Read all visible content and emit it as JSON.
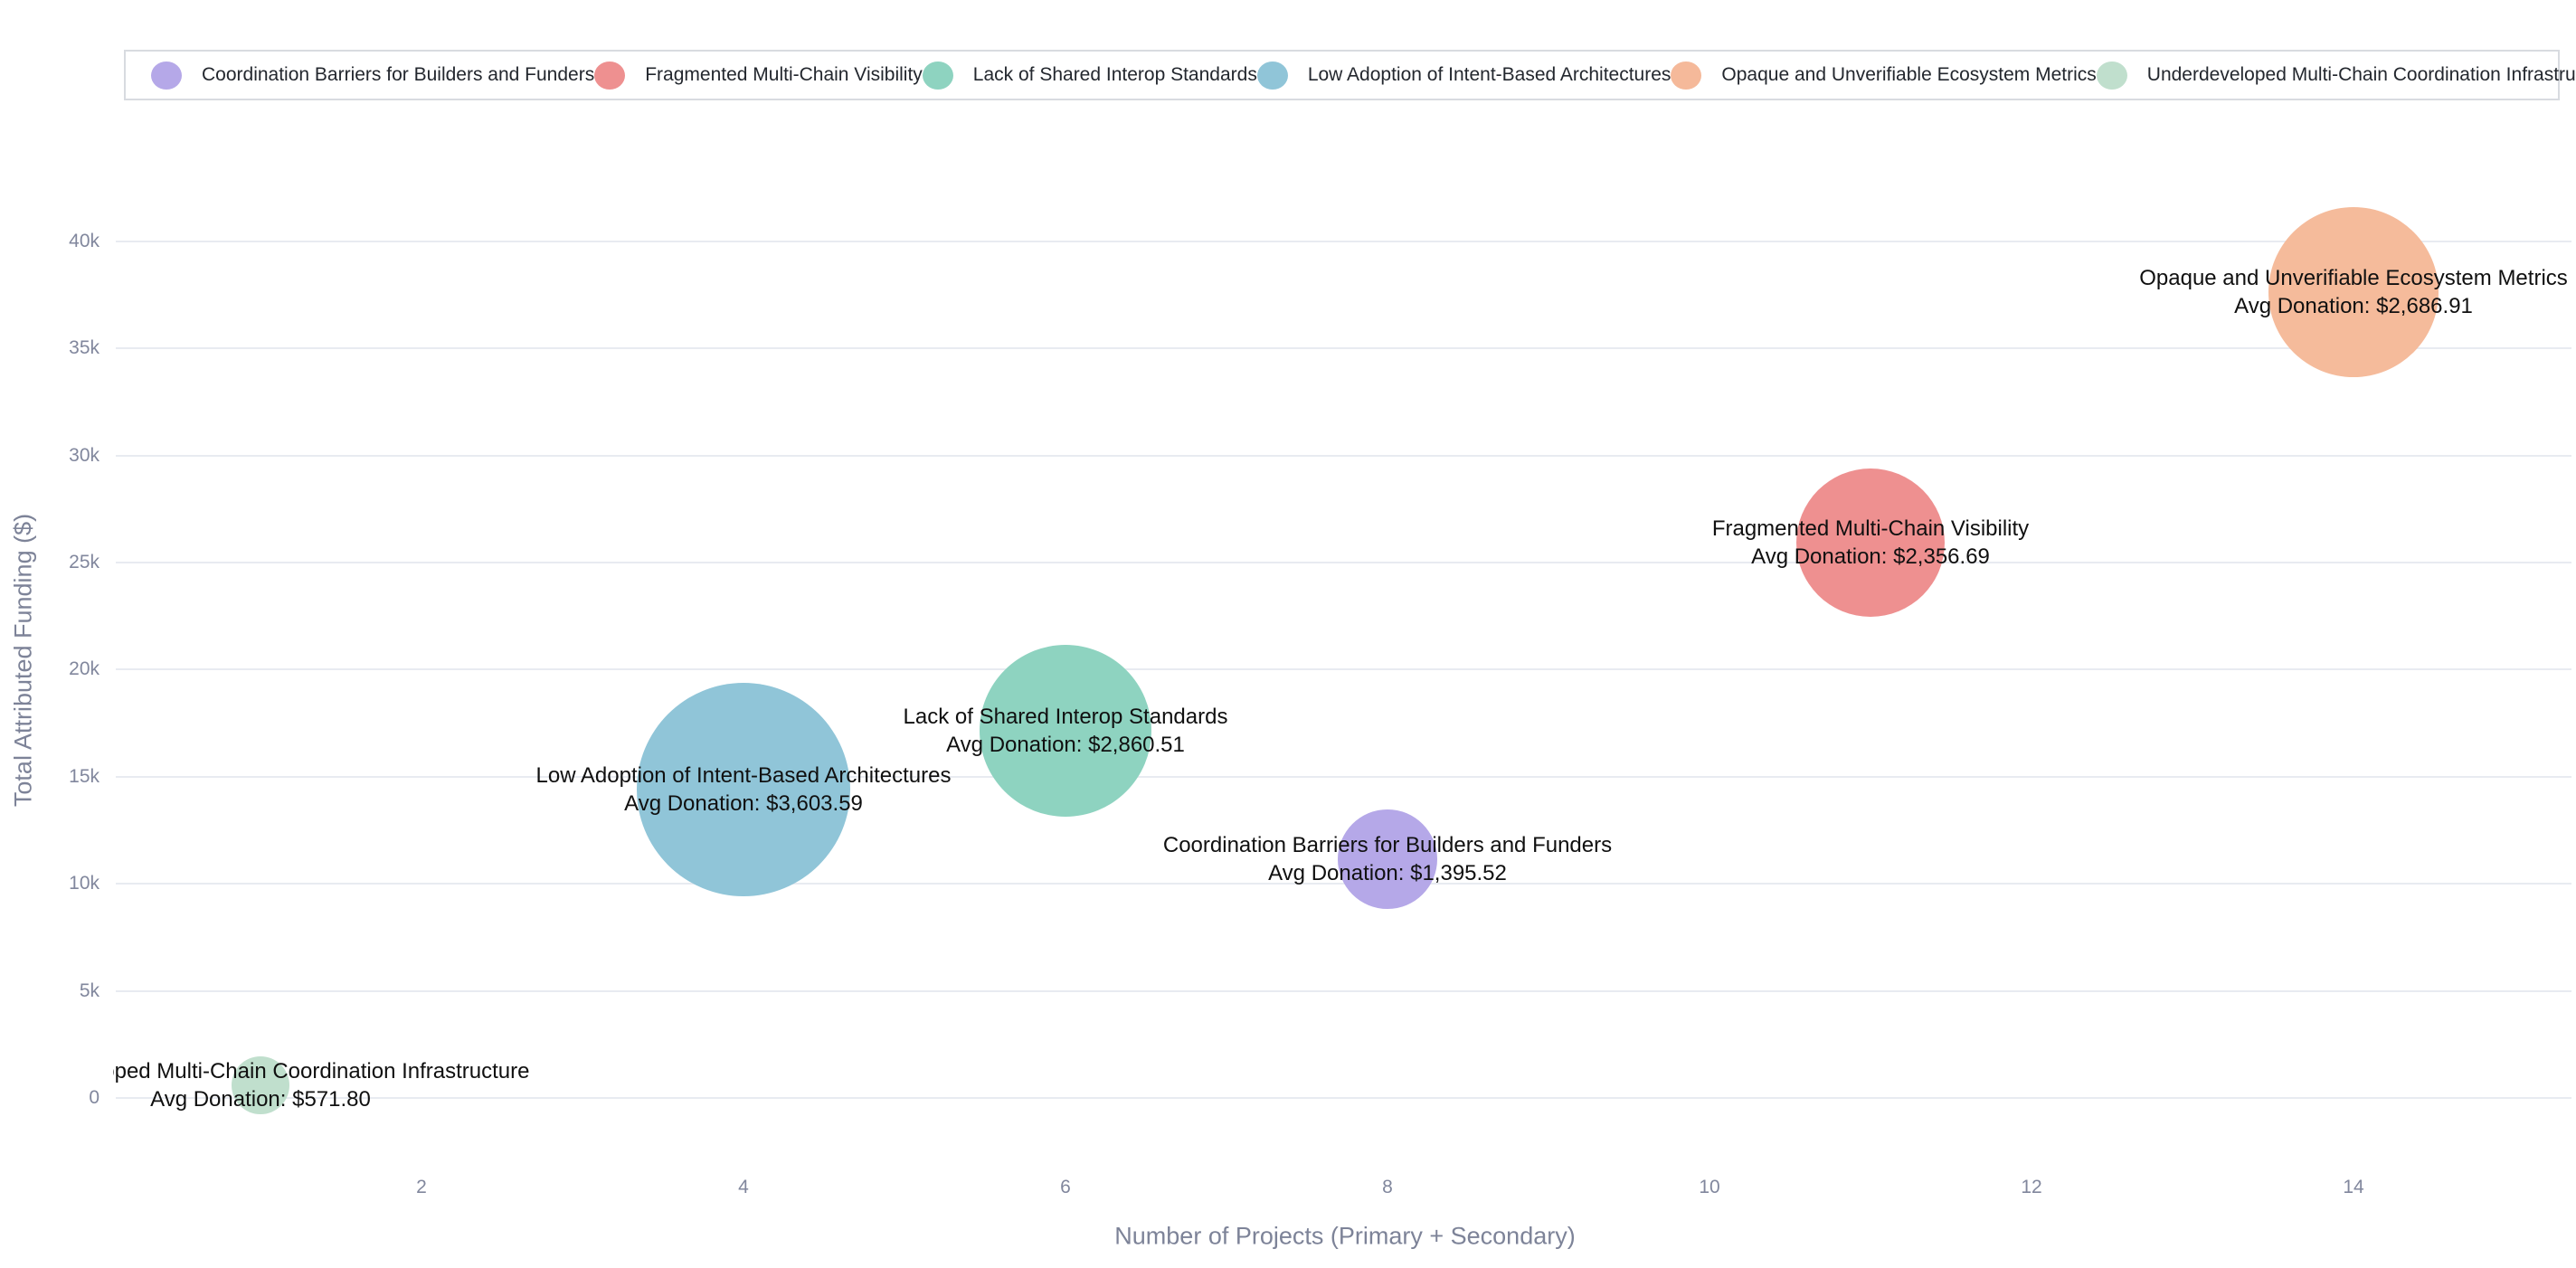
{
  "legend": {
    "items": [
      {
        "label": "Coordination Barriers for Builders and Funders",
        "color": "#b5a8e8"
      },
      {
        "label": "Fragmented Multi-Chain Visibility",
        "color": "#ee9090"
      },
      {
        "label": "Lack of Shared Interop Standards",
        "color": "#8ed3c0"
      },
      {
        "label": "Low Adoption of Intent-Based Architectures",
        "color": "#90c5d8"
      },
      {
        "label": "Opaque and Unverifiable Ecosystem Metrics",
        "color": "#f5b99a"
      },
      {
        "label": "Underdeveloped Multi-Chain Coordination Infrastructure",
        "color": "#c0dfcd"
      }
    ]
  },
  "chart_data": {
    "type": "scatter",
    "subtype": "bubble",
    "title": "",
    "xlabel": "Number of Projects (Primary + Secondary)",
    "ylabel": "Total Attributed Funding ($)",
    "xlim": [
      0.1,
      15.35
    ],
    "ylim": [
      -2250,
      42750
    ],
    "grid": "horizontal",
    "legend_position": "top",
    "x_ticks": [
      {
        "v": 2,
        "label": "2"
      },
      {
        "v": 4,
        "label": "4"
      },
      {
        "v": 6,
        "label": "6"
      },
      {
        "v": 8,
        "label": "8"
      },
      {
        "v": 10,
        "label": "10"
      },
      {
        "v": 12,
        "label": "12"
      },
      {
        "v": 14,
        "label": "14"
      }
    ],
    "y_ticks": [
      {
        "v": 0,
        "label": "0"
      },
      {
        "v": 5000,
        "label": "5k"
      },
      {
        "v": 10000,
        "label": "10k"
      },
      {
        "v": 15000,
        "label": "15k"
      },
      {
        "v": 20000,
        "label": "20k"
      },
      {
        "v": 25000,
        "label": "25k"
      },
      {
        "v": 30000,
        "label": "30k"
      },
      {
        "v": 35000,
        "label": "35k"
      },
      {
        "v": 40000,
        "label": "40k"
      }
    ],
    "series": [
      {
        "name": "Coordination Barriers for Builders and Funders",
        "x": 8,
        "y": 11164.16,
        "avg_donation": 1395.52,
        "label_line1": "Coordination Barriers for Builders and Funders",
        "label_line2": "Avg Donation: $1,395.52",
        "color": "#b5a8e8",
        "radius_px": 55
      },
      {
        "name": "Fragmented Multi-Chain Visibility",
        "x": 11,
        "y": 25923.59,
        "avg_donation": 2356.69,
        "label_line1": "Fragmented Multi-Chain Visibility",
        "label_line2": "Avg Donation: $2,356.69",
        "color": "#ee9090",
        "radius_px": 82
      },
      {
        "name": "Lack of Shared Interop Standards",
        "x": 6,
        "y": 17163.06,
        "avg_donation": 2860.51,
        "label_line1": "Lack of Shared Interop Standards",
        "label_line2": "Avg Donation: $2,860.51",
        "color": "#8ed3c0",
        "radius_px": 95
      },
      {
        "name": "Low Adoption of Intent-Based Architectures",
        "x": 4,
        "y": 14414.36,
        "avg_donation": 3603.59,
        "label_line1": "Low Adoption of Intent-Based Architectures",
        "label_line2": "Avg Donation: $3,603.59",
        "color": "#90c5d8",
        "radius_px": 118
      },
      {
        "name": "Opaque and Unverifiable Ecosystem Metrics",
        "x": 14,
        "y": 37616.74,
        "avg_donation": 2686.91,
        "label_line1": "Opaque and Unverifiable Ecosystem Metrics",
        "label_line2": "Avg Donation: $2,686.91",
        "color": "#f5bb9b",
        "radius_px": 94
      },
      {
        "name": "Underdeveloped Multi-Chain Coordination Infrastructure",
        "x": 1,
        "y": 571.8,
        "avg_donation": 571.8,
        "label_line1": "Underdeveloped Multi-Chain Coordination Infrastructure",
        "label_line2": "Avg Donation: $571.80",
        "color": "#c0dfcd",
        "radius_px": 32
      }
    ]
  }
}
